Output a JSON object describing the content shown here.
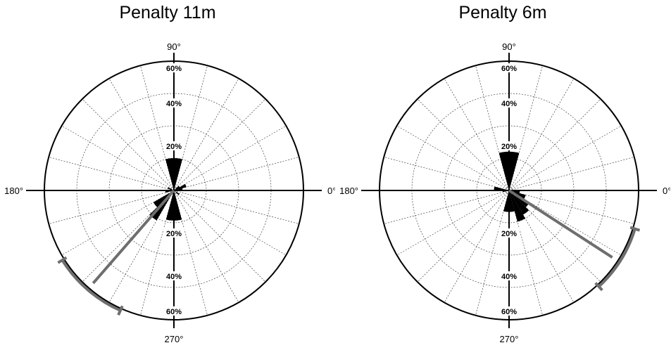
{
  "chart_data": [
    {
      "type": "polar-histogram",
      "title": "Penalty 11m",
      "angle_tick_labels": [
        "0°",
        "90°",
        "180°",
        "270°"
      ],
      "radial_tick_labels": [
        "20%",
        "40%",
        "60%"
      ],
      "radial_max": 60,
      "bin_width_deg": 15,
      "bins": [
        {
          "angle_deg": 7.5,
          "value": 4
        },
        {
          "angle_deg": 22.5,
          "value": 6
        },
        {
          "angle_deg": 37.5,
          "value": 3
        },
        {
          "angle_deg": 82.5,
          "value": 15
        },
        {
          "angle_deg": 97.5,
          "value": 15
        },
        {
          "angle_deg": 157.5,
          "value": 3
        },
        {
          "angle_deg": 187.5,
          "value": 4
        },
        {
          "angle_deg": 217.5,
          "value": 11
        },
        {
          "angle_deg": 232.5,
          "value": 16
        },
        {
          "angle_deg": 262.5,
          "value": 14
        },
        {
          "angle_deg": 277.5,
          "value": 14
        },
        {
          "angle_deg": 322.5,
          "value": 3
        }
      ],
      "mean_direction_deg": 229,
      "mean_vector_length_pct": 55,
      "confidence_arc_deg": [
        212,
        246
      ],
      "mean_color": "#6e6e6e"
    },
    {
      "type": "polar-histogram",
      "title": "Penalty 6m",
      "angle_tick_labels": [
        "0°",
        "90°",
        "180°",
        "270°"
      ],
      "radial_tick_labels": [
        "20%",
        "40%",
        "60%"
      ],
      "radial_max": 60,
      "bin_width_deg": 15,
      "bins": [
        {
          "angle_deg": 82.5,
          "value": 18
        },
        {
          "angle_deg": 97.5,
          "value": 18
        },
        {
          "angle_deg": 172.5,
          "value": 7
        },
        {
          "angle_deg": 187.5,
          "value": 3
        },
        {
          "angle_deg": 262.5,
          "value": 10
        },
        {
          "angle_deg": 277.5,
          "value": 10
        },
        {
          "angle_deg": 292.5,
          "value": 15
        },
        {
          "angle_deg": 307.5,
          "value": 13
        },
        {
          "angle_deg": 322.5,
          "value": 11
        },
        {
          "angle_deg": 337.5,
          "value": 8
        },
        {
          "angle_deg": 352.5,
          "value": 5
        }
      ],
      "mean_direction_deg": 327,
      "mean_vector_length_pct": 55,
      "confidence_arc_deg": [
        313,
        343
      ],
      "mean_color": "#6e6e6e"
    }
  ]
}
